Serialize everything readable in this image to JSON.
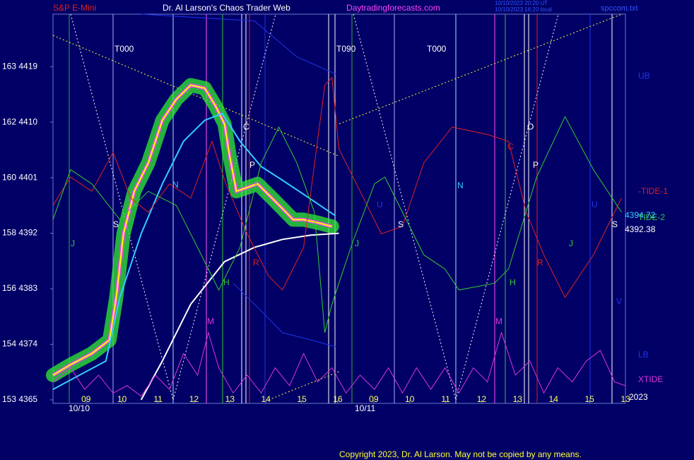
{
  "chart_data": {
    "type": "line",
    "title": "Dr. Al Larson's Chaos Trader Web",
    "symbol": "S&P E-Mini",
    "site": "Daytradingforecasts.com",
    "file": "spccom.txt",
    "timestamps": [
      "10/10/2023 20:20 UT",
      "10/10/2023 16:20 local"
    ],
    "copyright": "Copyright 2023, Dr. Al Larson. May not be copied by any means.",
    "ylim": [
      4365,
      4427.5
    ],
    "yticks": [
      {
        "value": 4419,
        "label": "163 4419"
      },
      {
        "value": 4410,
        "label": "162 4410"
      },
      {
        "value": 4401,
        "label": "160 4401"
      },
      {
        "value": 4392,
        "label": "158 4392"
      },
      {
        "value": 4383,
        "label": "156 4383"
      },
      {
        "value": 4374,
        "label": "154 4374"
      },
      {
        "value": 4365,
        "label": "153 4365"
      }
    ],
    "xlim": [
      -0.92,
      15
    ],
    "xticks": [
      {
        "value": 0,
        "label": "09"
      },
      {
        "value": 1,
        "label": "10"
      },
      {
        "value": 2,
        "label": "11"
      },
      {
        "value": 3,
        "label": "12"
      },
      {
        "value": 4,
        "label": "13"
      },
      {
        "value": 5,
        "label": "14"
      },
      {
        "value": 6,
        "label": "15"
      },
      {
        "value": 7,
        "label": "16"
      },
      {
        "value": 8,
        "label": "09"
      },
      {
        "value": 9,
        "label": "10"
      },
      {
        "value": 10,
        "label": "11"
      },
      {
        "value": 11,
        "label": "12"
      },
      {
        "value": 12,
        "label": "13"
      },
      {
        "value": 13,
        "label": "14"
      },
      {
        "value": 14,
        "label": "15"
      },
      {
        "value": 15,
        "label": "13"
      }
    ],
    "date_labels": [
      "10/10",
      "10/11",
      "2023"
    ],
    "annotations": [
      "T000",
      "T090",
      "T000",
      "C",
      "P",
      "N",
      "S",
      "J",
      "H",
      "R",
      "M",
      "U",
      "S",
      "J",
      "N",
      "O",
      "C",
      "P",
      "H",
      "R",
      "M",
      "J",
      "U",
      "S",
      "V",
      "4394.72",
      "4392.38"
    ],
    "series": [
      {
        "color": "#ffff00",
        "x": [
          -0.92,
          -0.43,
          0.16,
          0.65,
          0.84,
          1.04,
          1.34,
          1.73,
          2.12,
          2.51,
          2.91,
          3.3,
          3.6,
          3.85,
          3.99,
          4.18,
          4.48,
          4.77,
          5.17,
          5.46,
          5.76,
          6.05,
          6.44,
          6.84
        ],
        "values": [
          4369.0,
          4370.7,
          4372.5,
          4374.7,
          4381.6,
          4391.9,
          4398.8,
          4403.4,
          4410.3,
          4413.7,
          4416.0,
          4415.5,
          4412.6,
          4409.7,
          4404.6,
          4398.8,
          4399.4,
          4400.0,
          4397.7,
          4396.0,
          4394.2,
          4394.2,
          4393.7,
          4393.1
        ]
      },
      {
        "color": "#33ccff",
        "x": [
          -0.92,
          0.55,
          0.94,
          1.53,
          2.12,
          2.71,
          3.3,
          3.79,
          4.28,
          4.87,
          5.46,
          6.05,
          6.94
        ],
        "values": [
          4366.7,
          4371.3,
          4381.6,
          4391.9,
          4400.0,
          4406.9,
          4410.3,
          4411.4,
          4406.9,
          4402.8,
          4400.6,
          4398.3,
          4394.8
        ]
      },
      {
        "color": "#ffffff",
        "x": [
          1.53,
          2.12,
          2.91,
          3.85,
          4.68,
          5.46,
          6.25,
          7.03
        ],
        "values": [
          4365.0,
          4371.3,
          4380.5,
          4387.4,
          4389.7,
          4391.0,
          4391.7,
          4392.0
        ]
      },
      {
        "name": "UB",
        "color": "#2233ee",
        "x": [
          1.53,
          4.68,
          5.86,
          6.94
        ],
        "values": [
          4427.5,
          4426.4,
          4420.6,
          4417.8
        ]
      },
      {
        "name": "LB",
        "color": "#2233ee",
        "x": [
          4.09,
          4.68,
          5.46,
          6.25,
          6.94
        ],
        "values": [
          4383.9,
          4380.5,
          4375.9,
          4374.7,
          4373.6
        ]
      },
      {
        "name": "-TIDE-1",
        "color": "#dd2222",
        "x": [
          -0.92,
          -0.43,
          0.16,
          0.75,
          1.24,
          1.73,
          2.32,
          2.91,
          3.5,
          3.89,
          4.48,
          5.07,
          5.46,
          6.05,
          6.64,
          6.84,
          7.03,
          7.62,
          8.21,
          8.8,
          9.39,
          10.18,
          11.16,
          11.75,
          12.24,
          12.73,
          13.32,
          14.11,
          14.89
        ],
        "values": [
          4396.5,
          4401.1,
          4398.8,
          4405.1,
          4397.7,
          4395.4,
          4400.0,
          4397.7,
          4406.9,
          4400.0,
          4391.9,
          4385.1,
          4382.8,
          4389.7,
          4416.0,
          4417.2,
          4405.7,
          4398.8,
          4391.9,
          4393.1,
          4403.4,
          4409.2,
          4408.0,
          4406.9,
          4395.4,
          4388.5,
          4381.6,
          4388.5,
          4397.7
        ]
      },
      {
        "name": "TIDE-2",
        "color": "#33cc33",
        "x": [
          -0.92,
          -0.43,
          0.16,
          0.94,
          1.73,
          2.51,
          3.1,
          3.69,
          4.28,
          4.87,
          5.36,
          5.86,
          6.35,
          6.64,
          6.84,
          7.03,
          7.43,
          8.02,
          8.31,
          8.8,
          9.39,
          9.98,
          10.37,
          11.36,
          11.75,
          12.53,
          13.32,
          14.11,
          14.89
        ],
        "values": [
          4394.2,
          4402.3,
          4400.0,
          4394.2,
          4398.8,
          4396.5,
          4389.7,
          4382.8,
          4389.7,
          4403.4,
          4409.2,
          4403.4,
          4395.4,
          4375.9,
          4380.5,
          4383.9,
          4390.8,
          4400.0,
          4401.1,
          4395.4,
          4388.5,
          4386.2,
          4382.8,
          4383.9,
          4386.2,
          4401.1,
          4410.9,
          4402.3,
          4395.4
        ]
      },
      {
        "name": "XTIDE",
        "color": "#dd33dd",
        "x": [
          -0.92,
          -0.43,
          -0.04,
          0.35,
          0.75,
          1.14,
          1.53,
          1.93,
          2.32,
          2.71,
          3.1,
          3.4,
          3.69,
          4.09,
          4.48,
          4.87,
          5.26,
          5.66,
          6.05,
          6.44,
          6.84,
          7.23,
          7.62,
          8.02,
          8.41,
          8.8,
          9.19,
          9.59,
          9.98,
          10.37,
          10.77,
          11.16,
          11.55,
          11.94,
          12.34,
          12.73,
          13.12,
          13.52,
          13.91,
          14.3,
          14.7,
          14.99
        ],
        "values": [
          4367.9,
          4370.2,
          4366.7,
          4369.0,
          4366.1,
          4367.3,
          4365.6,
          4369.0,
          4366.7,
          4372.5,
          4369.0,
          4375.9,
          4370.2,
          4366.1,
          4369.0,
          4366.1,
          4370.2,
          4367.3,
          4372.5,
          4367.9,
          4370.2,
          4366.1,
          4369.0,
          4366.7,
          4370.2,
          4366.1,
          4370.2,
          4366.7,
          4370.2,
          4366.1,
          4370.2,
          4367.9,
          4375.9,
          4369.0,
          4371.3,
          4366.1,
          4370.2,
          4367.9,
          4371.3,
          4373.0,
          4367.9,
          4367.3
        ]
      }
    ]
  }
}
